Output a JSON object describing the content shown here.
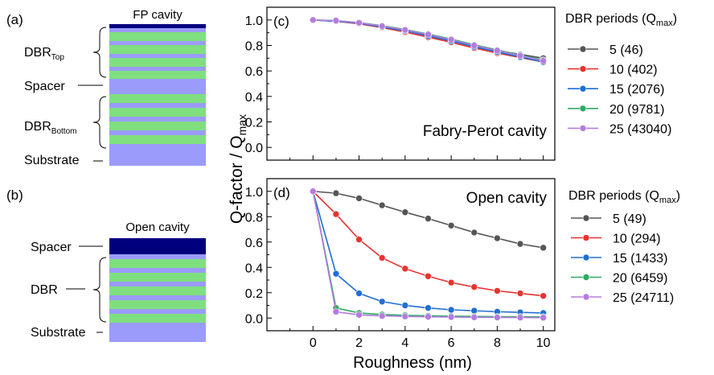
{
  "schematic": {
    "a": {
      "panel_label": "(a)",
      "title": "FP cavity",
      "labels": {
        "top": "DBR",
        "top_sub": "Top",
        "spacer": "Spacer",
        "bottom": "DBR",
        "bottom_sub": "Bottom",
        "substrate": "Substrate"
      }
    },
    "b": {
      "panel_label": "(b)",
      "title": "Open cavity",
      "labels": {
        "spacer": "Spacer",
        "dbr": "DBR",
        "substrate": "Substrate"
      }
    },
    "colors": {
      "cap": "#00007f",
      "spacer": "#9b9bfb",
      "high": "#7fdf7f",
      "low": "#9b9bfb",
      "substrate": "#9b9bfb"
    }
  },
  "chart_data": [
    {
      "type": "line",
      "panel_label": "(c)",
      "annotation": "Fabry-Perot cavity",
      "xlabel": "Roughness (nm)",
      "ylabel": "Q-factor / Q",
      "ylabel_sub": "max",
      "xlim": [
        -2,
        10.5
      ],
      "ylim": [
        -0.1,
        1.1
      ],
      "xticks": [
        0,
        2,
        4,
        6,
        8,
        10
      ],
      "yticks": [
        "0.0",
        "0.2",
        "0.4",
        "0.6",
        "0.8",
        "1.0"
      ],
      "legend": {
        "title": "DBR periods (Q",
        "title_sub": "max",
        "title_end": ")",
        "position": "right"
      },
      "x": [
        0,
        1,
        2,
        3,
        4,
        5,
        6,
        7,
        8,
        9,
        10
      ],
      "series": [
        {
          "name": "5 (46)",
          "color": "#555555",
          "values": [
            1.0,
            0.99,
            0.975,
            0.95,
            0.92,
            0.885,
            0.845,
            0.8,
            0.76,
            0.73,
            0.7
          ]
        },
        {
          "name": "10 (402)",
          "color": "#e8332f",
          "values": [
            1.0,
            0.99,
            0.97,
            0.94,
            0.905,
            0.865,
            0.825,
            0.78,
            0.74,
            0.705,
            0.67
          ]
        },
        {
          "name": "15 (2076)",
          "color": "#1f6fd1",
          "values": [
            1.0,
            0.99,
            0.975,
            0.945,
            0.915,
            0.875,
            0.835,
            0.79,
            0.75,
            0.71,
            0.67
          ]
        },
        {
          "name": "20 (9781)",
          "color": "#2eaa62",
          "values": [
            1.0,
            0.995,
            0.98,
            0.955,
            0.925,
            0.89,
            0.85,
            0.805,
            0.765,
            0.725,
            0.685
          ]
        },
        {
          "name": "25 (43040)",
          "color": "#b57be0",
          "values": [
            1.0,
            0.995,
            0.978,
            0.952,
            0.922,
            0.886,
            0.846,
            0.8,
            0.76,
            0.72,
            0.68
          ]
        }
      ]
    },
    {
      "type": "line",
      "panel_label": "(d)",
      "annotation": "Open cavity",
      "xlabel": "Roughness (nm)",
      "ylabel": "Q-factor / Q",
      "ylabel_sub": "max",
      "xlim": [
        -2,
        10.5
      ],
      "ylim": [
        -0.1,
        1.1
      ],
      "xticks": [
        0,
        2,
        4,
        6,
        8,
        10
      ],
      "yticks": [
        "0.0",
        "0.2",
        "0.4",
        "0.6",
        "0.8",
        "1.0"
      ],
      "legend": {
        "title": "DBR periods (Q",
        "title_sub": "max",
        "title_end": ")",
        "position": "right"
      },
      "x": [
        0,
        1,
        2,
        3,
        4,
        5,
        6,
        7,
        8,
        9,
        10
      ],
      "series": [
        {
          "name": "5 (49)",
          "color": "#555555",
          "values": [
            1.0,
            0.985,
            0.945,
            0.89,
            0.835,
            0.785,
            0.73,
            0.675,
            0.63,
            0.585,
            0.555
          ]
        },
        {
          "name": "10 (294)",
          "color": "#e8332f",
          "values": [
            1.0,
            0.82,
            0.62,
            0.475,
            0.39,
            0.33,
            0.28,
            0.245,
            0.215,
            0.195,
            0.175
          ]
        },
        {
          "name": "15 (1433)",
          "color": "#1f6fd1",
          "values": [
            1.0,
            0.35,
            0.195,
            0.13,
            0.1,
            0.08,
            0.065,
            0.058,
            0.05,
            0.045,
            0.04
          ]
        },
        {
          "name": "20 (6459)",
          "color": "#2eaa62",
          "values": [
            1.0,
            0.08,
            0.04,
            0.028,
            0.022,
            0.018,
            0.015,
            0.013,
            0.011,
            0.01,
            0.009
          ]
        },
        {
          "name": "25 (24711)",
          "color": "#b57be0",
          "values": [
            1.0,
            0.05,
            0.025,
            0.017,
            0.013,
            0.01,
            0.008,
            0.006,
            0.005,
            0.004,
            0.003
          ]
        }
      ]
    }
  ]
}
